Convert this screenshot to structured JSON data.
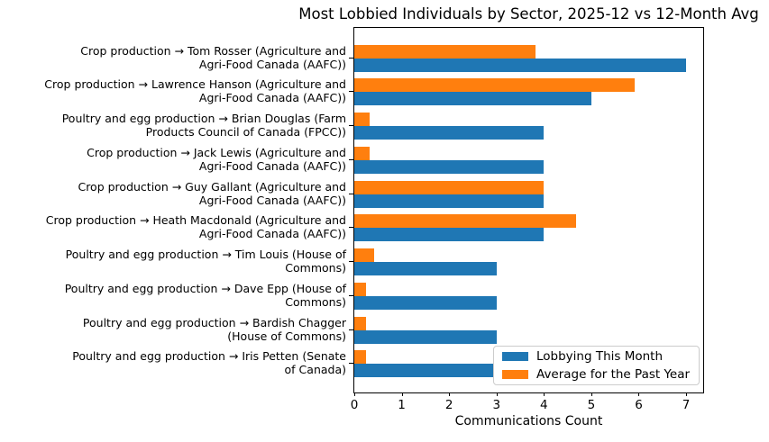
{
  "chart_data": {
    "type": "bar",
    "orientation": "horizontal",
    "title": "Most Lobbied Individuals by Sector, 2025-12 vs 12-Month Avg",
    "xlabel": "Communications Count",
    "ylabel": "",
    "xlim": [
      0,
      7.36
    ],
    "xticks": [
      0,
      1,
      2,
      3,
      4,
      5,
      6,
      7
    ],
    "grid": false,
    "legend_position": "lower right",
    "categories": [
      {
        "full": "Crop production → Tom Rosser (Agriculture and Agri-Food Canada (AAFC))",
        "line1": "Crop production → Tom Rosser (Agriculture and",
        "line2": "Agri-Food Canada (AAFC))"
      },
      {
        "full": "Crop production → Lawrence Hanson (Agriculture and Agri-Food Canada (AAFC))",
        "line1": "Crop production → Lawrence Hanson (Agriculture and",
        "line2": "Agri-Food Canada (AAFC))"
      },
      {
        "full": "Poultry and egg production → Brian Douglas (Farm Products Council of Canada (FPCC))",
        "line1": "Poultry and egg production → Brian Douglas (Farm",
        "line2": "Products Council of Canada (FPCC))"
      },
      {
        "full": "Crop production → Jack Lewis (Agriculture and Agri-Food Canada (AAFC))",
        "line1": "Crop production → Jack Lewis (Agriculture and",
        "line2": "Agri-Food Canada (AAFC))"
      },
      {
        "full": "Crop production → Guy Gallant (Agriculture and Agri-Food Canada (AAFC))",
        "line1": "Crop production → Guy Gallant (Agriculture and",
        "line2": "Agri-Food Canada (AAFC))"
      },
      {
        "full": "Crop production → Heath Macdonald (Agriculture and Agri-Food Canada (AAFC))",
        "line1": "Crop production → Heath Macdonald (Agriculture and",
        "line2": "Agri-Food Canada (AAFC))"
      },
      {
        "full": "Poultry and egg production → Tim Louis (House of Commons)",
        "line1": "Poultry and egg production → Tim Louis (House of",
        "line2": "Commons)"
      },
      {
        "full": "Poultry and egg production → Dave Epp (House of Commons)",
        "line1": "Poultry and egg production → Dave Epp (House of",
        "line2": "Commons)"
      },
      {
        "full": "Poultry and egg production → Bardish Chagger (House of Commons)",
        "line1": "Poultry and egg production → Bardish Chagger",
        "line2": "(House of Commons)"
      },
      {
        "full": "Poultry and egg production → Iris Petten (Senate of Canada)",
        "line1": "Poultry and egg production → Iris Petten (Senate",
        "line2": "of Canada)"
      }
    ],
    "series": [
      {
        "name": "Lobbying This Month",
        "color": "#1f77b4",
        "values": [
          7,
          5,
          4,
          4,
          4,
          4,
          3,
          3,
          3,
          3
        ]
      },
      {
        "name": "Average for the Past Year",
        "color": "#ff7f0e",
        "values": [
          3.83,
          5.92,
          0.33,
          0.33,
          4.0,
          4.67,
          0.42,
          0.25,
          0.25,
          0.25
        ]
      }
    ]
  }
}
